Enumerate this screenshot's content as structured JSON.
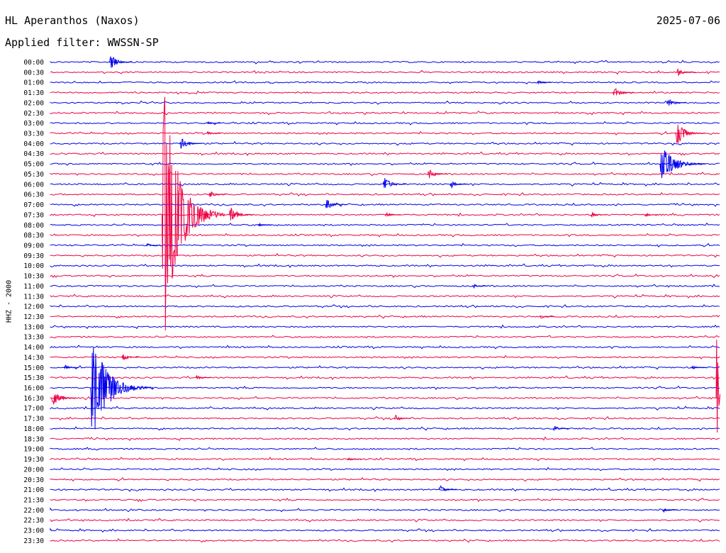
{
  "header": {
    "station": "HL Aperanthos (Naxos)",
    "date": "2025-07-06",
    "filter": "Applied filter: WWSSN-SP"
  },
  "chart_data": {
    "type": "line",
    "title": "HL Aperanthos (Naxos)",
    "subtitle": "Applied filter: WWSSN-SP",
    "ylabel": "HHZ - 2000",
    "xlabel": "",
    "line_colors": [
      "#0000ee",
      "#ee0044"
    ],
    "grid": false,
    "trace_times": [
      "00:00",
      "00:30",
      "01:00",
      "01:30",
      "02:00",
      "02:30",
      "03:00",
      "03:30",
      "04:00",
      "04:30",
      "05:00",
      "05:30",
      "06:00",
      "06:30",
      "07:00",
      "07:30",
      "08:00",
      "08:30",
      "09:00",
      "09:30",
      "10:00",
      "10:30",
      "11:00",
      "11:30",
      "12:00",
      "12:30",
      "13:00",
      "13:30",
      "14:00",
      "14:30",
      "15:00",
      "15:30",
      "16:00",
      "16:30",
      "17:00",
      "17:30",
      "18:00",
      "18:30",
      "19:00",
      "19:30",
      "20:00",
      "20:30",
      "21:00",
      "21:30",
      "22:00",
      "22:30",
      "23:00",
      "23:30"
    ],
    "x_range_minutes": [
      0,
      30
    ],
    "events": [
      {
        "trace": "00:00",
        "minute": 2.65,
        "amplitude": 14
      },
      {
        "trace": "00:30",
        "minute": 28.05,
        "amplitude": 9
      },
      {
        "trace": "01:00",
        "minute": 21.8,
        "amplitude": 4
      },
      {
        "trace": "01:30",
        "minute": 25.2,
        "amplitude": 12
      },
      {
        "trace": "02:00",
        "minute": 27.6,
        "amplitude": 9
      },
      {
        "trace": "03:00",
        "minute": 7.0,
        "amplitude": 3
      },
      {
        "trace": "03:30",
        "minute": 7.0,
        "amplitude": 4
      },
      {
        "trace": "03:30",
        "minute": 28.0,
        "amplitude": 22
      },
      {
        "trace": "04:00",
        "minute": 5.8,
        "amplitude": 13
      },
      {
        "trace": "05:00",
        "minute": 27.3,
        "amplitude": 40
      },
      {
        "trace": "05:30",
        "minute": 16.9,
        "amplitude": 10
      },
      {
        "trace": "06:00",
        "minute": 14.9,
        "amplitude": 14
      },
      {
        "trace": "06:00",
        "minute": 17.9,
        "amplitude": 8
      },
      {
        "trace": "06:30",
        "minute": 7.1,
        "amplitude": 7
      },
      {
        "trace": "07:00",
        "minute": 12.3,
        "amplitude": 13
      },
      {
        "trace": "07:30",
        "minute": 5.0,
        "amplitude": 210
      },
      {
        "trace": "07:30",
        "minute": 8.0,
        "amplitude": 16
      },
      {
        "trace": "07:30",
        "minute": 15.0,
        "amplitude": 5
      },
      {
        "trace": "07:30",
        "minute": 24.2,
        "amplitude": 6
      },
      {
        "trace": "07:30",
        "minute": 26.6,
        "amplitude": 4
      },
      {
        "trace": "08:00",
        "minute": 9.3,
        "amplitude": 4
      },
      {
        "trace": "09:00",
        "minute": 4.3,
        "amplitude": 4
      },
      {
        "trace": "11:00",
        "minute": 18.9,
        "amplitude": 5
      },
      {
        "trace": "12:30",
        "minute": 21.9,
        "amplitude": 5
      },
      {
        "trace": "14:30",
        "minute": 3.2,
        "amplitude": 7
      },
      {
        "trace": "15:00",
        "minute": 0.6,
        "amplitude": 5
      },
      {
        "trace": "15:00",
        "minute": 28.7,
        "amplitude": 5
      },
      {
        "trace": "15:30",
        "minute": 6.5,
        "amplitude": 5
      },
      {
        "trace": "16:00",
        "minute": 1.8,
        "amplitude": 85
      },
      {
        "trace": "16:30",
        "minute": 0.05,
        "amplitude": 16
      },
      {
        "trace": "17:30",
        "minute": 15.4,
        "amplitude": 7
      },
      {
        "trace": "18:00",
        "minute": 22.5,
        "amplitude": 6
      },
      {
        "trace": "19:30",
        "minute": 13.3,
        "amplitude": 4
      },
      {
        "trace": "21:00",
        "minute": 17.4,
        "amplitude": 8
      },
      {
        "trace": "22:00",
        "minute": 27.4,
        "amplitude": 5
      },
      {
        "trace": "16:30",
        "minute": 30.0,
        "amplitude": 380
      }
    ]
  }
}
